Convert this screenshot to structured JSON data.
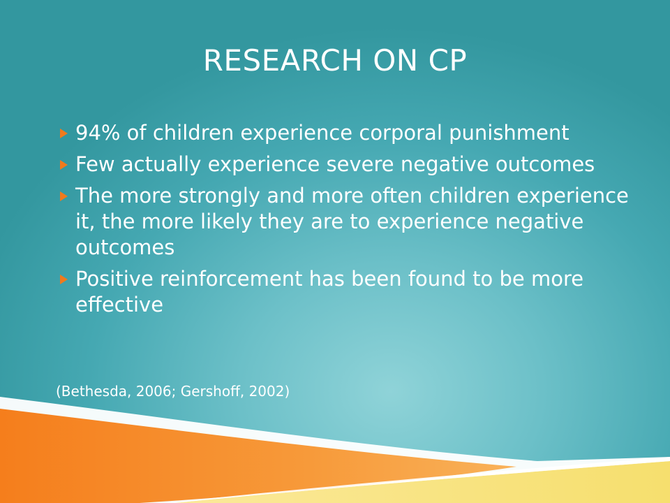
{
  "slide": {
    "title": "RESEARCH ON CP",
    "bullets": [
      "94% of children experience corporal punishment",
      "Few actually experience severe negative outcomes",
      "The more strongly and more often children experience it, the more likely they are to experience negative outcomes",
      "Positive reinforcement has been found to be more effective"
    ],
    "citation": "(Bethesda, 2006; Gershoff, 2002)"
  },
  "colors": {
    "background": "#45a8b2",
    "bullet_arrow": "#f07a1c",
    "orange_band": "#f58a24",
    "yellow_band": "#f7e27a"
  },
  "icons": {
    "bullet": "right-triangle-arrow-icon"
  }
}
